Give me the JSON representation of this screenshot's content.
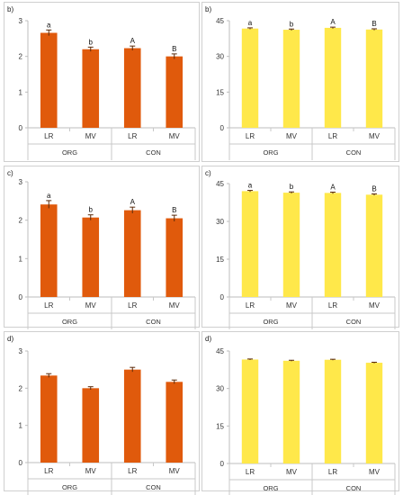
{
  "chart_data": [
    {
      "type": "bar",
      "panel_label": "b)",
      "categories": [
        "LR",
        "MV",
        "LR",
        "MV"
      ],
      "groups": [
        "ORG",
        "CON"
      ],
      "values": [
        2.66,
        2.2,
        2.23,
        2.0
      ],
      "errors": [
        0.08,
        0.06,
        0.06,
        0.07
      ],
      "significance": [
        "a",
        "b",
        "A",
        "B"
      ],
      "ylim": [
        0,
        3
      ],
      "yticks": [
        "0",
        "1",
        "2",
        "3"
      ],
      "bar_color": "#e05a0c"
    },
    {
      "type": "bar",
      "panel_label": "b)",
      "categories": [
        "LR",
        "MV",
        "LR",
        "MV"
      ],
      "groups": [
        "ORG",
        "CON"
      ],
      "values": [
        41.7,
        41.2,
        42.0,
        41.3
      ],
      "errors": [
        0.3,
        0.3,
        0.3,
        0.3
      ],
      "significance": [
        "a",
        "b",
        "A",
        "B"
      ],
      "ylim": [
        0,
        45
      ],
      "yticks": [
        "0",
        "15",
        "30",
        "45"
      ],
      "bar_color": "#ffe84a"
    },
    {
      "type": "bar",
      "panel_label": "c)",
      "categories": [
        "LR",
        "MV",
        "LR",
        "MV"
      ],
      "groups": [
        "ORG",
        "CON"
      ],
      "values": [
        2.41,
        2.07,
        2.26,
        2.05
      ],
      "errors": [
        0.1,
        0.07,
        0.08,
        0.08
      ],
      "significance": [
        "a",
        "b",
        "A",
        "B"
      ],
      "ylim": [
        0,
        3
      ],
      "yticks": [
        "0",
        "1",
        "2",
        "3"
      ],
      "bar_color": "#e05a0c"
    },
    {
      "type": "bar",
      "panel_label": "c)",
      "categories": [
        "LR",
        "MV",
        "LR",
        "MV"
      ],
      "groups": [
        "ORG",
        "CON"
      ],
      "values": [
        42.0,
        41.4,
        41.3,
        40.6
      ],
      "errors": [
        0.3,
        0.3,
        0.3,
        0.3
      ],
      "significance": [
        "a",
        "b",
        "A",
        "B"
      ],
      "ylim": [
        0,
        45
      ],
      "yticks": [
        "0",
        "15",
        "30",
        "45"
      ],
      "bar_color": "#ffe84a"
    },
    {
      "type": "bar",
      "panel_label": "d)",
      "categories": [
        "LR",
        "MV",
        "LR",
        "MV"
      ],
      "groups": [
        "ORG",
        "CON"
      ],
      "values": [
        2.34,
        2.0,
        2.5,
        2.17
      ],
      "errors": [
        0.05,
        0.04,
        0.06,
        0.05
      ],
      "significance": [
        "",
        "",
        "",
        ""
      ],
      "ylim": [
        0,
        3
      ],
      "yticks": [
        "0",
        "1",
        "2",
        "3"
      ],
      "bar_color": "#e05a0c"
    },
    {
      "type": "bar",
      "panel_label": "d)",
      "categories": [
        "LR",
        "MV",
        "LR",
        "MV"
      ],
      "groups": [
        "ORG",
        "CON"
      ],
      "values": [
        41.6,
        41.1,
        41.5,
        40.3
      ],
      "errors": [
        0.2,
        0.2,
        0.2,
        0.2
      ],
      "significance": [
        "",
        "",
        "",
        ""
      ],
      "ylim": [
        0,
        45
      ],
      "yticks": [
        "0",
        "15",
        "30",
        "45"
      ],
      "bar_color": "#ffe84a"
    }
  ]
}
